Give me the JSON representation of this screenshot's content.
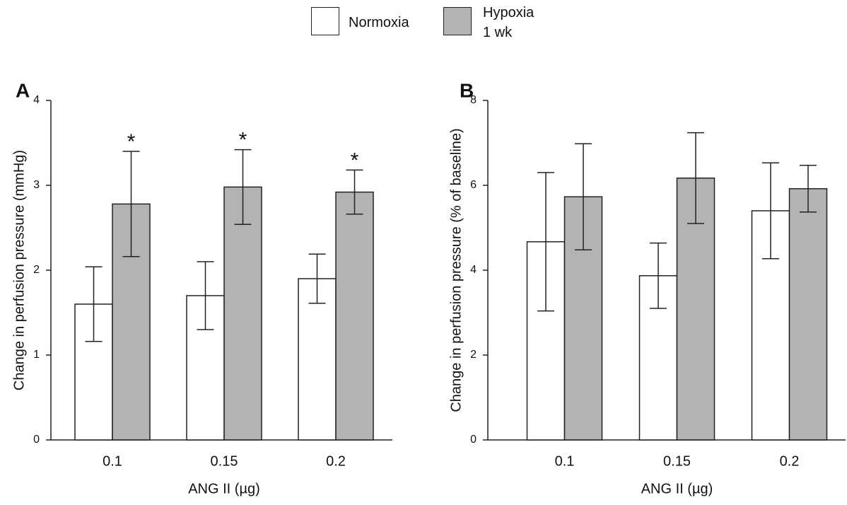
{
  "chart_data": [
    {
      "type": "bar",
      "panel": "A",
      "y_label": "Change in perfusion pressure (mmHg)",
      "x_label": "ANG II (µg)",
      "categories": [
        "0.1",
        "0.15",
        "0.2"
      ],
      "series": [
        {
          "name": "Normoxia",
          "color": "#ffffff",
          "values": [
            1.6,
            1.7,
            1.9
          ],
          "errors": [
            0.44,
            0.4,
            0.29
          ]
        },
        {
          "name": "Hypoxia\n1 wk",
          "color": "#b3b3b6",
          "values": [
            2.78,
            2.98,
            2.92
          ],
          "errors": [
            0.62,
            0.44,
            0.26
          ],
          "markers": [
            "*",
            "*",
            "*"
          ]
        }
      ],
      "ylim": [
        0,
        4
      ],
      "yticks": [
        0,
        1,
        2,
        3,
        4
      ]
    },
    {
      "type": "bar",
      "panel": "B",
      "y_label": "Change in perfusion pressure (% of baseline)",
      "x_label": "ANG II (µg)",
      "categories": [
        "0.1",
        "0.15",
        "0.2"
      ],
      "series": [
        {
          "color": "#ffffff",
          "values": [
            4.67,
            3.87,
            5.4
          ],
          "errors": [
            1.63,
            0.77,
            1.13
          ]
        },
        {
          "color": "#b3b3b6",
          "values": [
            5.73,
            6.17,
            5.92
          ],
          "errors": [
            1.25,
            1.07,
            0.55
          ]
        }
      ],
      "ylim": [
        0,
        8
      ],
      "yticks": [
        0,
        2,
        4,
        6,
        8
      ]
    }
  ]
}
